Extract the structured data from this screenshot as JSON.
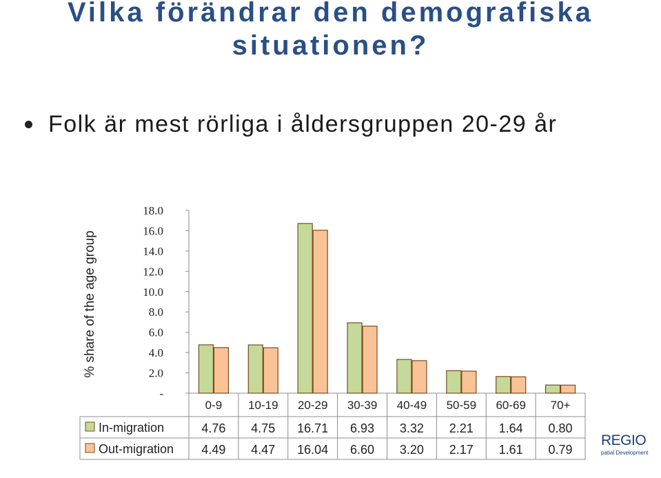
{
  "slide": {
    "title": "Vilka förändrar den demografiska situationen?",
    "bullet": "Folk är mest rörliga i åldersgruppen 20-29 år"
  },
  "logo": {
    "main": "REGIO",
    "sub": "patial Development"
  },
  "chart_data": {
    "type": "bar",
    "ylabel": "% share of the age group",
    "ylim": [
      0,
      18
    ],
    "yticks": [
      0,
      2,
      4,
      6,
      8,
      10,
      12,
      14,
      16,
      18
    ],
    "ytick_labels": [
      "-",
      "2.0",
      "4.0",
      "6.0",
      "8.0",
      "10.0",
      "12.0",
      "14.0",
      "16.0",
      "18.0"
    ],
    "grid": false,
    "legend": "table-below",
    "categories": [
      "0-9",
      "10-19",
      "20-29",
      "30-39",
      "40-49",
      "50-59",
      "60-69",
      "70+"
    ],
    "series": [
      {
        "name": "In-migration",
        "color": "#c5d99a",
        "values": [
          4.76,
          4.75,
          16.71,
          6.93,
          3.32,
          2.21,
          1.64,
          0.8
        ],
        "labels": [
          "4.76",
          "4.75",
          "16.71",
          "6.93",
          "3.32",
          "2.21",
          "1.64",
          "0.80"
        ]
      },
      {
        "name": "Out-migration",
        "color": "#fac397",
        "values": [
          4.49,
          4.47,
          16.04,
          6.6,
          3.2,
          2.17,
          1.61,
          0.79
        ],
        "labels": [
          "4.49",
          "4.47",
          "16.04",
          "6.60",
          "3.20",
          "2.17",
          "1.61",
          "0.79"
        ]
      }
    ],
    "bar_edge_color": "#7a4a1e"
  }
}
